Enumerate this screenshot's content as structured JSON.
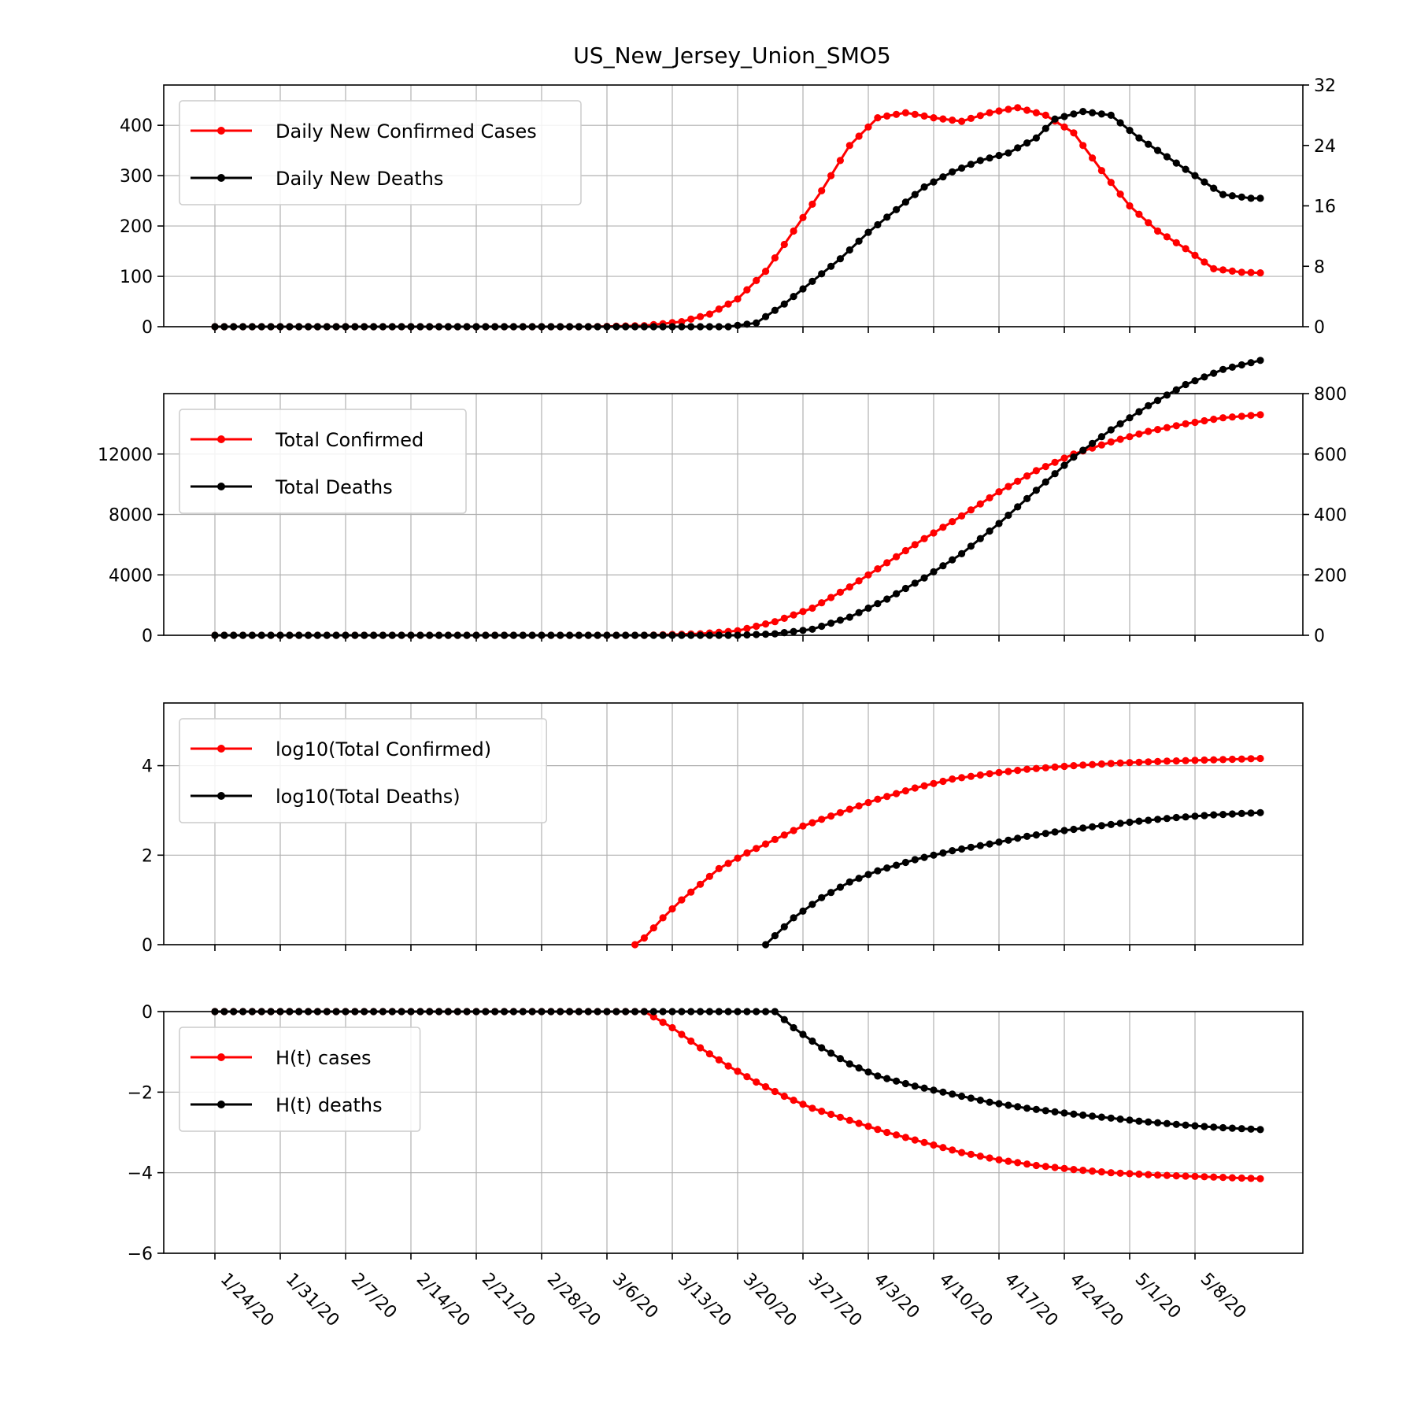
{
  "title": "US_New_Jersey_Union_SMO5",
  "colors": {
    "cases": "#ff0000",
    "deaths": "#000000"
  },
  "x_dates": [
    "1/24/20",
    "1/31/20",
    "2/7/20",
    "2/14/20",
    "2/21/20",
    "2/28/20",
    "3/6/20",
    "3/13/20",
    "3/20/20",
    "3/27/20",
    "4/3/20",
    "4/10/20",
    "4/17/20",
    "4/24/20",
    "5/1/20",
    "5/8/20"
  ],
  "chart_data": [
    {
      "type": "line",
      "x_range": [
        "1/24/20",
        "5/11/20"
      ],
      "ylim_left": [
        0,
        480
      ],
      "ylim_right": [
        0,
        32
      ],
      "yticks_left": [
        0,
        100,
        200,
        300,
        400
      ],
      "yticks_right": [
        0,
        8,
        16,
        24,
        32
      ],
      "grid": true,
      "legend": "top-left",
      "series": [
        {
          "name": "Daily New Confirmed Cases",
          "color": "#ff0000",
          "axis": "left",
          "points": [
            [
              "1/24/20",
              0
            ],
            [
              "3/4/20",
              0
            ],
            [
              "3/10/20",
              2
            ],
            [
              "3/14/20",
              10
            ],
            [
              "3/17/20",
              25
            ],
            [
              "3/20/20",
              55
            ],
            [
              "3/23/20",
              110
            ],
            [
              "3/26/20",
              190
            ],
            [
              "3/29/20",
              270
            ],
            [
              "4/1/20",
              360
            ],
            [
              "4/4/20",
              415
            ],
            [
              "4/7/20",
              425
            ],
            [
              "4/10/20",
              415
            ],
            [
              "4/13/20",
              408
            ],
            [
              "4/16/20",
              425
            ],
            [
              "4/19/20",
              435
            ],
            [
              "4/22/20",
              420
            ],
            [
              "4/25/20",
              385
            ],
            [
              "4/28/20",
              310
            ],
            [
              "5/1/20",
              240
            ],
            [
              "5/4/20",
              190
            ],
            [
              "5/7/20",
              155
            ],
            [
              "5/10/20",
              115
            ],
            [
              "5/13/20",
              108
            ],
            [
              "5/15/20",
              107
            ]
          ]
        },
        {
          "name": "Daily New Deaths",
          "color": "#000000",
          "axis": "right",
          "points": [
            [
              "1/24/20",
              0
            ],
            [
              "3/19/20",
              0
            ],
            [
              "3/22/20",
              0.5
            ],
            [
              "3/25/20",
              3
            ],
            [
              "3/28/20",
              6
            ],
            [
              "3/31/20",
              9
            ],
            [
              "4/3/20",
              12.5
            ],
            [
              "4/6/20",
              15.5
            ],
            [
              "4/9/20",
              18.5
            ],
            [
              "4/12/20",
              20.5
            ],
            [
              "4/15/20",
              22
            ],
            [
              "4/18/20",
              23
            ],
            [
              "4/21/20",
              25
            ],
            [
              "4/23/20",
              27.5
            ],
            [
              "4/26/20",
              28.5
            ],
            [
              "4/29/20",
              28
            ],
            [
              "5/2/20",
              25
            ],
            [
              "5/5/20",
              22.5
            ],
            [
              "5/8/20",
              20
            ],
            [
              "5/11/20",
              17.5
            ],
            [
              "5/14/20",
              17
            ],
            [
              "5/15/20",
              17
            ]
          ]
        }
      ]
    },
    {
      "type": "line",
      "x_range": [
        "1/24/20",
        "5/15/20"
      ],
      "ylim_left": [
        0,
        16000
      ],
      "ylim_right": [
        0,
        800
      ],
      "yticks_left": [
        0,
        4000,
        8000,
        12000
      ],
      "yticks_right": [
        0,
        200,
        400,
        600,
        800
      ],
      "grid": true,
      "legend": "top-left",
      "series": [
        {
          "name": "Total Confirmed",
          "color": "#ff0000",
          "axis": "left",
          "points": [
            [
              "1/24/20",
              0
            ],
            [
              "3/10/20",
              0
            ],
            [
              "3/16/20",
              100
            ],
            [
              "3/20/20",
              300
            ],
            [
              "3/24/20",
              900
            ],
            [
              "3/28/20",
              1800
            ],
            [
              "4/1/20",
              3200
            ],
            [
              "4/5/20",
              4800
            ],
            [
              "4/9/20",
              6400
            ],
            [
              "4/13/20",
              7900
            ],
            [
              "4/17/20",
              9500
            ],
            [
              "4/21/20",
              10900
            ],
            [
              "4/25/20",
              12000
            ],
            [
              "4/29/20",
              12800
            ],
            [
              "5/3/20",
              13500
            ],
            [
              "5/7/20",
              14000
            ],
            [
              "5/11/20",
              14400
            ],
            [
              "5/15/20",
              14600
            ]
          ]
        },
        {
          "name": "Total Deaths",
          "color": "#000000",
          "axis": "right",
          "points": [
            [
              "1/24/20",
              0
            ],
            [
              "3/20/20",
              0
            ],
            [
              "3/24/20",
              5
            ],
            [
              "3/28/20",
              20
            ],
            [
              "4/1/20",
              60
            ],
            [
              "4/5/20",
              120
            ],
            [
              "4/9/20",
              190
            ],
            [
              "4/13/20",
              270
            ],
            [
              "4/17/20",
              370
            ],
            [
              "4/21/20",
              480
            ],
            [
              "4/25/20",
              590
            ],
            [
              "4/29/20",
              680
            ],
            [
              "5/3/20",
              760
            ],
            [
              "5/7/20",
              830
            ],
            [
              "5/11/20",
              880
            ],
            [
              "5/15/20",
              910
            ]
          ]
        }
      ]
    },
    {
      "type": "line",
      "x_range": [
        "1/24/20",
        "5/15/20"
      ],
      "ylim": [
        0,
        5.4
      ],
      "yticks": [
        0,
        2,
        4
      ],
      "grid": true,
      "legend": "top-left",
      "series": [
        {
          "name": "log10(Total Confirmed)",
          "color": "#ff0000",
          "points": [
            [
              "3/9/20",
              0
            ],
            [
              "3/10/20",
              0.15
            ],
            [
              "3/12/20",
              0.6
            ],
            [
              "3/14/20",
              1.0
            ],
            [
              "3/16/20",
              1.35
            ],
            [
              "3/18/20",
              1.7
            ],
            [
              "3/21/20",
              2.05
            ],
            [
              "3/24/20",
              2.35
            ],
            [
              "3/27/20",
              2.65
            ],
            [
              "3/31/20",
              2.95
            ],
            [
              "4/4/20",
              3.25
            ],
            [
              "4/8/20",
              3.5
            ],
            [
              "4/12/20",
              3.7
            ],
            [
              "4/16/20",
              3.82
            ],
            [
              "4/20/20",
              3.92
            ],
            [
              "4/25/20",
              4.0
            ],
            [
              "4/30/20",
              4.06
            ],
            [
              "5/5/20",
              4.1
            ],
            [
              "5/10/20",
              4.13
            ],
            [
              "5/15/20",
              4.16
            ]
          ]
        },
        {
          "name": "log10(Total Deaths)",
          "color": "#000000",
          "points": [
            [
              "3/23/20",
              0
            ],
            [
              "3/24/20",
              0.2
            ],
            [
              "3/26/20",
              0.6
            ],
            [
              "3/29/20",
              1.05
            ],
            [
              "4/1/20",
              1.4
            ],
            [
              "4/4/20",
              1.65
            ],
            [
              "4/8/20",
              1.9
            ],
            [
              "4/12/20",
              2.1
            ],
            [
              "4/16/20",
              2.25
            ],
            [
              "4/20/20",
              2.42
            ],
            [
              "4/24/20",
              2.55
            ],
            [
              "4/28/20",
              2.66
            ],
            [
              "5/2/20",
              2.76
            ],
            [
              "5/6/20",
              2.84
            ],
            [
              "5/10/20",
              2.9
            ],
            [
              "5/15/20",
              2.95
            ]
          ]
        }
      ]
    },
    {
      "type": "line",
      "x_range": [
        "1/24/20",
        "5/15/20"
      ],
      "ylim": [
        -6,
        0
      ],
      "yticks": [
        0,
        -2,
        -4,
        -6
      ],
      "grid": true,
      "legend": "top-left",
      "series": [
        {
          "name": "H(t) cases",
          "color": "#ff0000",
          "points": [
            [
              "1/24/20",
              0
            ],
            [
              "3/10/20",
              0
            ],
            [
              "3/13/20",
              -0.4
            ],
            [
              "3/16/20",
              -0.9
            ],
            [
              "3/19/20",
              -1.35
            ],
            [
              "3/22/20",
              -1.75
            ],
            [
              "3/25/20",
              -2.1
            ],
            [
              "3/28/20",
              -2.4
            ],
            [
              "4/1/20",
              -2.7
            ],
            [
              "4/5/20",
              -3.0
            ],
            [
              "4/9/20",
              -3.25
            ],
            [
              "4/13/20",
              -3.5
            ],
            [
              "4/17/20",
              -3.68
            ],
            [
              "4/21/20",
              -3.82
            ],
            [
              "4/25/20",
              -3.92
            ],
            [
              "4/29/20",
              -4.0
            ],
            [
              "5/4/20",
              -4.06
            ],
            [
              "5/9/20",
              -4.1
            ],
            [
              "5/15/20",
              -4.15
            ]
          ]
        },
        {
          "name": "H(t) deaths",
          "color": "#000000",
          "points": [
            [
              "1/24/20",
              0
            ],
            [
              "3/24/20",
              0
            ],
            [
              "3/26/20",
              -0.4
            ],
            [
              "3/29/20",
              -0.9
            ],
            [
              "4/1/20",
              -1.3
            ],
            [
              "4/4/20",
              -1.6
            ],
            [
              "4/8/20",
              -1.85
            ],
            [
              "4/12/20",
              -2.05
            ],
            [
              "4/16/20",
              -2.25
            ],
            [
              "4/20/20",
              -2.4
            ],
            [
              "4/24/20",
              -2.52
            ],
            [
              "4/28/20",
              -2.62
            ],
            [
              "5/2/20",
              -2.72
            ],
            [
              "5/6/20",
              -2.8
            ],
            [
              "5/10/20",
              -2.87
            ],
            [
              "5/15/20",
              -2.93
            ]
          ]
        }
      ]
    }
  ]
}
